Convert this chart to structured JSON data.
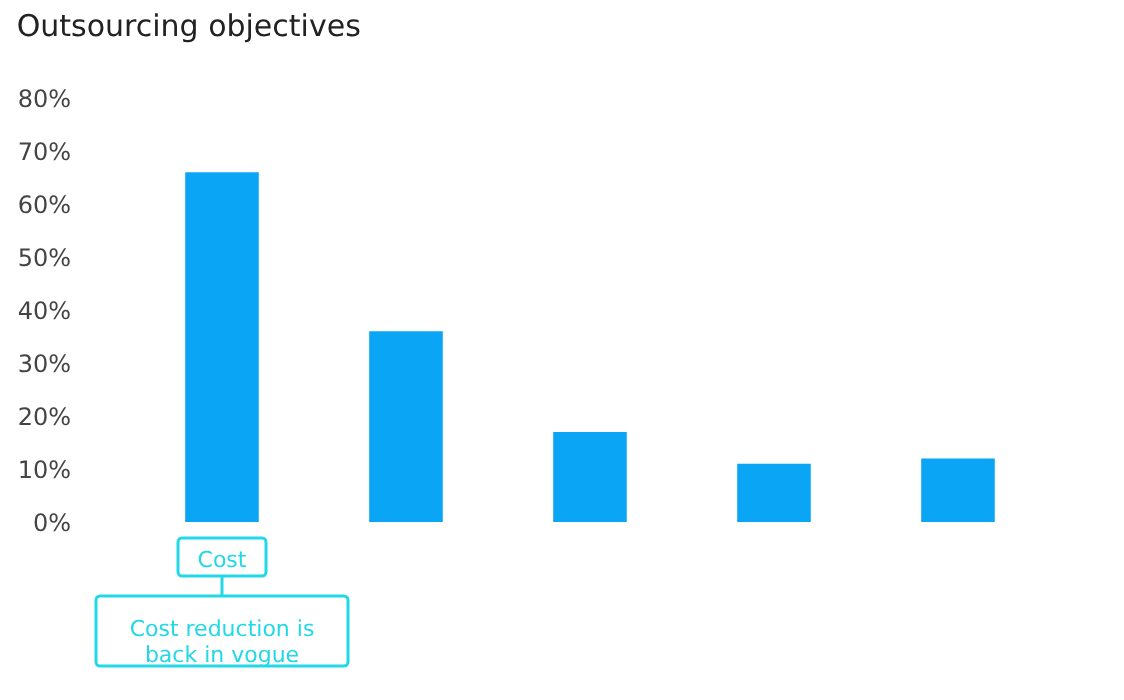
{
  "chart_data": {
    "type": "bar",
    "title": "Outsourcing objectives",
    "categories": [
      "Cost",
      null,
      null,
      null,
      null
    ],
    "values": [
      66,
      36,
      17,
      11,
      12
    ],
    "color": "#0aa6f5",
    "ylim": [
      0,
      80
    ],
    "yticks": [
      {
        "value": 0,
        "label": "0%"
      },
      {
        "value": 10,
        "label": "10%"
      },
      {
        "value": 20,
        "label": "20%"
      },
      {
        "value": 30,
        "label": "30%"
      },
      {
        "value": 40,
        "label": "40%"
      },
      {
        "value": 50,
        "label": "50%"
      },
      {
        "value": 60,
        "label": "60%"
      },
      {
        "value": 70,
        "label": "70%"
      },
      {
        "value": 80,
        "label": "80%"
      }
    ],
    "annotations": [
      {
        "text": "Cost reduction is back in vogue",
        "x": "Cost"
      }
    ],
    "grid": false
  }
}
